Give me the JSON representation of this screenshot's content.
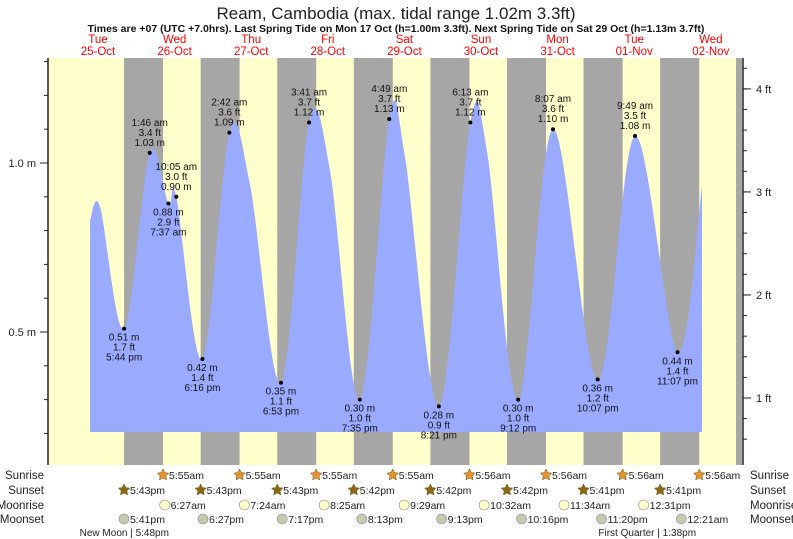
{
  "chart_data": {
    "type": "area",
    "title": "Ream, Cambodia (max. tidal range 1.02m 3.3ft)",
    "subtitle": "Times are +07 (UTC +7.0hrs). Last Spring Tide on Mon 17 Oct (h=1.00m 3.3ft). Next Spring Tide on Sat 29 Oct (h=1.13m 3.7ft)",
    "days": [
      {
        "dow": "Tue",
        "date": "25-Oct"
      },
      {
        "dow": "Wed",
        "date": "26-Oct"
      },
      {
        "dow": "Thu",
        "date": "27-Oct"
      },
      {
        "dow": "Fri",
        "date": "28-Oct"
      },
      {
        "dow": "Sat",
        "date": "29-Oct"
      },
      {
        "dow": "Sun",
        "date": "30-Oct"
      },
      {
        "dow": "Mon",
        "date": "31-Oct"
      },
      {
        "dow": "Tue",
        "date": "01-Nov"
      },
      {
        "dow": "Wed",
        "date": "02-Nov"
      }
    ],
    "y_left": {
      "unit": "m",
      "ticks": [
        "0.5 m",
        "1.0 m"
      ],
      "tick_values": [
        0.5,
        1.0
      ],
      "ylim": [
        0.2,
        1.3
      ]
    },
    "y_right": {
      "unit": "ft",
      "ticks": [
        "1 ft",
        "2 ft",
        "3 ft",
        "4 ft"
      ],
      "tick_values": [
        1,
        2,
        3,
        4
      ]
    },
    "curve_points": [
      [
        0,
        "7:03",
        0.83
      ],
      [
        0,
        "10:12",
        0.87
      ],
      [
        0,
        "17:44",
        0.51
      ],
      [
        1,
        "1:46",
        1.03
      ],
      [
        1,
        "7:37",
        0.88
      ],
      [
        1,
        "10:05",
        0.9
      ],
      [
        1,
        "18:16",
        0.42
      ],
      [
        2,
        "2:42",
        1.09
      ],
      [
        2,
        "9:12",
        0.935
      ],
      [
        2,
        "18:53",
        0.35
      ],
      [
        3,
        "3:41",
        1.12
      ],
      [
        3,
        "10:12",
        0.98
      ],
      [
        3,
        "19:35",
        0.3
      ],
      [
        4,
        "4:49",
        1.13
      ],
      [
        4,
        "9:42",
        1.02
      ],
      [
        4,
        "20:21",
        0.28
      ],
      [
        5,
        "6:13",
        1.12
      ],
      [
        5,
        "11:30",
        1.03
      ],
      [
        5,
        "21:12",
        0.3
      ],
      [
        6,
        "8:07",
        1.1
      ],
      [
        6,
        "22:07",
        0.36
      ],
      [
        7,
        "9:49",
        1.08
      ],
      [
        7,
        "23:07",
        0.44
      ],
      [
        8,
        "6:48",
        0.93
      ]
    ],
    "tides": [
      {
        "day": 0,
        "clock": "17:44",
        "time": "5:44 pm",
        "m": "0.51 m",
        "ft": "1.7 ft",
        "h": 0.51,
        "type": "low"
      },
      {
        "day": 1,
        "clock": "1:46",
        "time": "1:46 am",
        "m": "1.03 m",
        "ft": "3.4 ft",
        "h": 1.03,
        "type": "high"
      },
      {
        "day": 1,
        "clock": "7:37",
        "time": "7:37 am",
        "m": "0.88 m",
        "ft": "2.9 ft",
        "h": 0.88,
        "type": "low"
      },
      {
        "day": 1,
        "clock": "10:05",
        "time": "10:05 am",
        "m": "0.90 m",
        "ft": "3.0 ft",
        "h": 0.9,
        "type": "high"
      },
      {
        "day": 1,
        "clock": "18:16",
        "time": "6:16 pm",
        "m": "0.42 m",
        "ft": "1.4 ft",
        "h": 0.42,
        "type": "low"
      },
      {
        "day": 2,
        "clock": "2:42",
        "time": "2:42 am",
        "m": "1.09 m",
        "ft": "3.6 ft",
        "h": 1.09,
        "type": "high"
      },
      {
        "day": 2,
        "clock": "18:53",
        "time": "6:53 pm",
        "m": "0.35 m",
        "ft": "1.1 ft",
        "h": 0.35,
        "type": "low"
      },
      {
        "day": 3,
        "clock": "3:41",
        "time": "3:41 am",
        "m": "1.12 m",
        "ft": "3.7 ft",
        "h": 1.12,
        "type": "high"
      },
      {
        "day": 3,
        "clock": "19:35",
        "time": "7:35 pm",
        "m": "0.30 m",
        "ft": "1.0 ft",
        "h": 0.3,
        "type": "low"
      },
      {
        "day": 4,
        "clock": "4:49",
        "time": "4:49 am",
        "m": "1.13 m",
        "ft": "3.7 ft",
        "h": 1.13,
        "type": "high"
      },
      {
        "day": 4,
        "clock": "20:21",
        "time": "8:21 pm",
        "m": "0.28 m",
        "ft": "0.9 ft",
        "h": 0.28,
        "type": "low"
      },
      {
        "day": 5,
        "clock": "6:13",
        "time": "6:13 am",
        "m": "1.12 m",
        "ft": "3.7 ft",
        "h": 1.12,
        "type": "high"
      },
      {
        "day": 5,
        "clock": "21:12",
        "time": "9:12 pm",
        "m": "0.30 m",
        "ft": "1.0 ft",
        "h": 0.3,
        "type": "low"
      },
      {
        "day": 6,
        "clock": "8:07",
        "time": "8:07 am",
        "m": "1.10 m",
        "ft": "3.6 ft",
        "h": 1.1,
        "type": "high"
      },
      {
        "day": 6,
        "clock": "22:07",
        "time": "10:07 pm",
        "m": "0.36 m",
        "ft": "1.2 ft",
        "h": 0.36,
        "type": "low"
      },
      {
        "day": 7,
        "clock": "9:49",
        "time": "9:49 am",
        "m": "1.08 m",
        "ft": "3.5 ft",
        "h": 1.08,
        "type": "high"
      },
      {
        "day": 7,
        "clock": "23:07",
        "time": "11:07 pm",
        "m": "0.44 m",
        "ft": "1.4 ft",
        "h": 0.44,
        "type": "low"
      }
    ],
    "rows": {
      "sunrise": {
        "label": "Sunrise",
        "items": [
          [
            1,
            "5:55",
            "5:55am"
          ],
          [
            2,
            "5:55",
            "5:55am"
          ],
          [
            3,
            "5:55",
            "5:55am"
          ],
          [
            4,
            "5:55",
            "5:55am"
          ],
          [
            5,
            "5:56",
            "5:56am"
          ],
          [
            6,
            "5:56",
            "5:56am"
          ],
          [
            7,
            "5:56",
            "5:56am"
          ],
          [
            8,
            "5:56",
            "5:56am"
          ]
        ]
      },
      "sunset": {
        "label": "Sunset",
        "items": [
          [
            0,
            "17:43",
            "5:43pm"
          ],
          [
            1,
            "17:43",
            "5:43pm"
          ],
          [
            2,
            "17:43",
            "5:43pm"
          ],
          [
            3,
            "17:42",
            "5:42pm"
          ],
          [
            4,
            "17:42",
            "5:42pm"
          ],
          [
            5,
            "17:42",
            "5:42pm"
          ],
          [
            6,
            "17:41",
            "5:41pm"
          ],
          [
            7,
            "17:41",
            "5:41pm"
          ]
        ]
      },
      "moonrise": {
        "label": "Moonrise",
        "items": [
          [
            1,
            "6:27",
            "6:27am"
          ],
          [
            2,
            "7:24",
            "7:24am"
          ],
          [
            3,
            "8:25",
            "8:25am"
          ],
          [
            4,
            "9:29",
            "9:29am"
          ],
          [
            5,
            "10:32",
            "10:32am"
          ],
          [
            6,
            "11:34",
            "11:34am"
          ],
          [
            7,
            "12:31",
            "12:31pm"
          ]
        ]
      },
      "moonset": {
        "label": "Moonset",
        "items": [
          [
            0,
            "17:41",
            "5:41pm"
          ],
          [
            1,
            "18:27",
            "6:27pm"
          ],
          [
            2,
            "19:17",
            "7:17pm"
          ],
          [
            3,
            "20:13",
            "8:13pm"
          ],
          [
            4,
            "21:13",
            "9:13pm"
          ],
          [
            5,
            "22:16",
            "10:16pm"
          ],
          [
            6,
            "23:20",
            "11:20pm"
          ],
          [
            8,
            "0:21",
            "12:21am"
          ]
        ]
      }
    },
    "moon_phases": [
      {
        "text": "New Moon | 5:48pm",
        "day": 0,
        "clock": "17:48"
      },
      {
        "text": "First Quarter | 1:38pm",
        "day": 7,
        "clock": "13:38"
      }
    ],
    "colors": {
      "day": "#ffffcc",
      "night": "#a6a6a6",
      "water": "#9aabff",
      "date": "#ff0000",
      "sunrise": "#e8922e",
      "sunset": "#8b6914",
      "moonrise": "#ffffcc",
      "moonset": "#c8c8b0"
    }
  }
}
